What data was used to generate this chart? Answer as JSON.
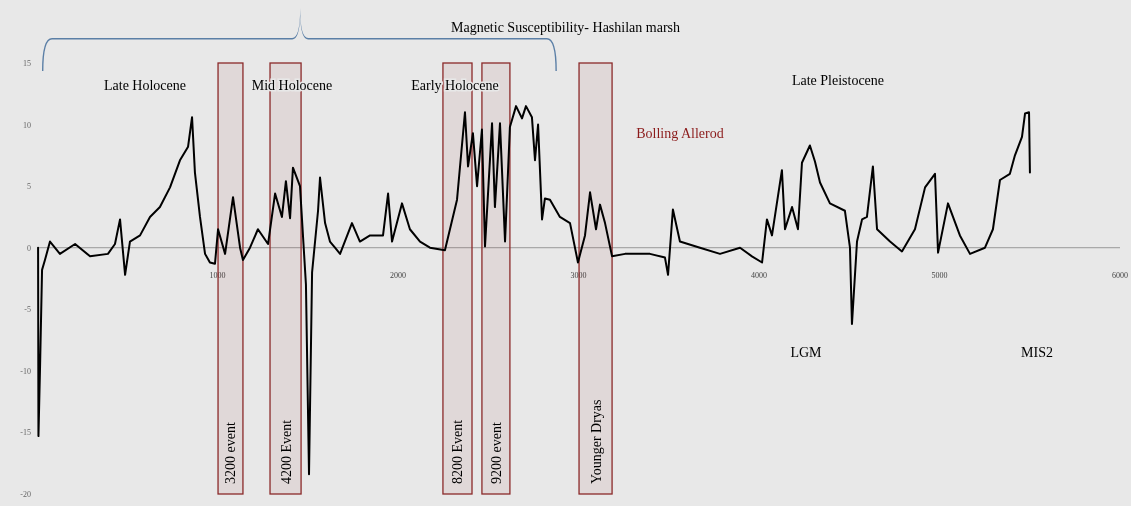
{
  "chart_data": {
    "type": "line",
    "title": "Magnetic Susceptibility- Hashilan marsh",
    "xlim": [
      0,
      6000
    ],
    "xticks": [
      1000,
      2000,
      3000,
      4000,
      5000,
      6000
    ],
    "ylim": [
      -20,
      15
    ],
    "yticks": [
      15,
      10,
      5,
      0,
      -5,
      -10,
      -15,
      -20
    ],
    "series": [
      {
        "color": "#000000",
        "x": [
          6,
          8,
          17,
          28,
          44,
          72,
          127,
          211,
          294,
          393,
          432,
          460,
          488,
          515,
          571,
          626,
          681,
          737,
          792,
          837,
          859,
          875,
          903,
          931,
          958,
          986,
          1003,
          1042,
          1086,
          1125,
          1141,
          1180,
          1224,
          1280,
          1319,
          1357,
          1379,
          1402,
          1418,
          1457,
          1490,
          1507,
          1524,
          1557,
          1568,
          1596,
          1623,
          1651,
          1679,
          1745,
          1789,
          1845,
          1917,
          1945,
          1967,
          2022,
          2066,
          2122,
          2177,
          2260,
          2327,
          2371,
          2388,
          2415,
          2438,
          2465,
          2482,
          2521,
          2537,
          2565,
          2593,
          2620,
          2654,
          2687,
          2709,
          2742,
          2759,
          2776,
          2798,
          2814,
          2842,
          2897,
          2953,
          2997,
          3036,
          3064,
          3097,
          3119,
          3147,
          3186,
          3258,
          3396,
          3479,
          3496,
          3523,
          3562,
          3673,
          3784,
          3895,
          3961,
          4017,
          4044,
          4072,
          4127,
          4144,
          4183,
          4216,
          4238,
          4282,
          4310,
          4338,
          4393,
          4476,
          4504,
          4515,
          4543,
          4571,
          4598,
          4631,
          4654,
          4726,
          4792,
          4864,
          4920,
          4975,
          4992,
          5047,
          5113,
          5169,
          5252,
          5296,
          5335,
          5390,
          5418,
          5457,
          5474,
          5496,
          5501
        ],
        "values": [
          0,
          -15.3,
          -9.6,
          -1.8,
          -1,
          0.5,
          -0.5,
          0.3,
          -0.7,
          -0.5,
          0.3,
          2.3,
          -2.2,
          0.5,
          1,
          2.5,
          3.3,
          4.9,
          7.1,
          8.2,
          10.6,
          6.1,
          2.5,
          -0.5,
          -1.2,
          -1.3,
          1.5,
          -0.5,
          4.1,
          0,
          -1,
          0,
          1.5,
          0.3,
          4.4,
          2.5,
          5.4,
          2.4,
          6.5,
          5,
          -3,
          -18.4,
          -2,
          3,
          5.7,
          2,
          0.5,
          0,
          -0.5,
          2,
          0.5,
          1,
          1,
          4.4,
          0.5,
          3.6,
          1.5,
          0.5,
          0,
          -0.2,
          3.9,
          11,
          6.6,
          9.3,
          5,
          9.6,
          0.1,
          10.1,
          3.3,
          10.1,
          0.5,
          9.8,
          11.5,
          10.5,
          11.5,
          10.6,
          7.1,
          10,
          2.3,
          4,
          3.9,
          2.5,
          2,
          -1.2,
          1,
          4.5,
          1.5,
          3.5,
          2,
          -0.7,
          -0.5,
          -0.5,
          -0.8,
          -2.2,
          3.1,
          0.5,
          0,
          -0.5,
          0,
          -0.7,
          -1.2,
          2.3,
          1,
          6.3,
          1.5,
          3.3,
          1.5,
          6.9,
          8.3,
          7,
          5.3,
          3.6,
          3,
          0,
          -6.2,
          0.5,
          2.3,
          2.5,
          6.6,
          1.5,
          0.5,
          -0.3,
          1.5,
          4.9,
          6,
          -0.4,
          3.6,
          1,
          -0.5,
          0,
          1.5,
          5.5,
          6,
          7.5,
          9,
          10.9,
          11,
          6.1
        ]
      }
    ],
    "bands": [
      {
        "axis": "x",
        "from": 1003,
        "to": 1141,
        "label": "3200 event",
        "color": "#8b2a2a"
      },
      {
        "axis": "x",
        "from": 1291,
        "to": 1463,
        "label": "4200 Event",
        "color": "#8b2a2a"
      },
      {
        "axis": "x",
        "from": 2249,
        "to": 2410,
        "label": "8200 Event",
        "color": "#8b2a2a"
      },
      {
        "axis": "x",
        "from": 2465,
        "to": 2620,
        "label": "9200 event",
        "color": "#8b2a2a"
      },
      {
        "axis": "x",
        "from": 3003,
        "to": 3186,
        "label": "Younger Dryas",
        "color": "#8b2a2a"
      }
    ],
    "annotations": [
      "Late Holocene",
      "Mid Holocene",
      "Early Holocene",
      "Late Pleistocene",
      "Bolling Allerod",
      "LGM",
      "MIS2"
    ],
    "line_style": "solid",
    "marker": "none"
  }
}
